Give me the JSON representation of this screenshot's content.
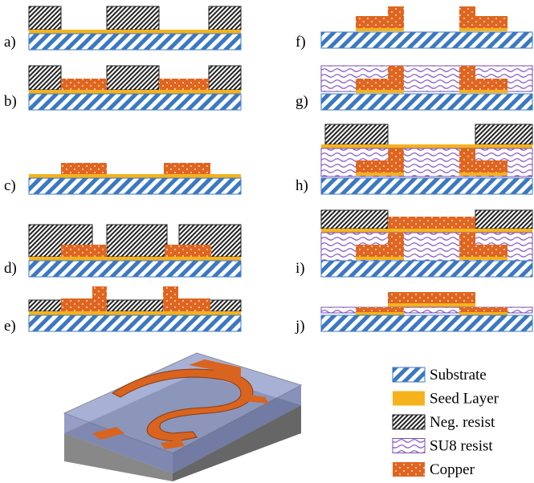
{
  "steps": [
    "a)",
    "b)",
    "c)",
    "d)",
    "e)",
    "f)",
    "g)",
    "h)",
    "i)",
    "j)"
  ],
  "legend": [
    "Substrate",
    "Seed Layer",
    "Neg. resist",
    "SU8 resist",
    "Copper"
  ]
}
